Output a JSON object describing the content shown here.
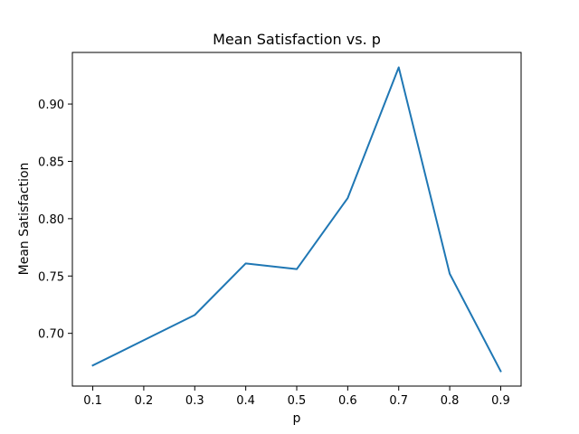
{
  "chart_data": {
    "type": "line",
    "title": "Mean Satisfaction vs. p",
    "xlabel": "p",
    "ylabel": "Mean Satisfaction",
    "x": [
      0.1,
      0.3,
      0.4,
      0.5,
      0.6,
      0.7,
      0.8,
      0.9
    ],
    "series": [
      {
        "values": [
          0.672,
          0.716,
          0.761,
          0.756,
          0.818,
          0.932,
          0.752,
          0.667
        ],
        "color": "#1f77b4"
      }
    ],
    "xticks": [
      "0.1",
      "0.2",
      "0.3",
      "0.4",
      "0.5",
      "0.6",
      "0.7",
      "0.8",
      "0.9"
    ],
    "yticks": [
      "0.70",
      "0.75",
      "0.80",
      "0.85",
      "0.90"
    ],
    "xlim": [
      0.06,
      0.94
    ],
    "ylim": [
      0.654,
      0.945
    ],
    "grid": false,
    "legend": false
  }
}
